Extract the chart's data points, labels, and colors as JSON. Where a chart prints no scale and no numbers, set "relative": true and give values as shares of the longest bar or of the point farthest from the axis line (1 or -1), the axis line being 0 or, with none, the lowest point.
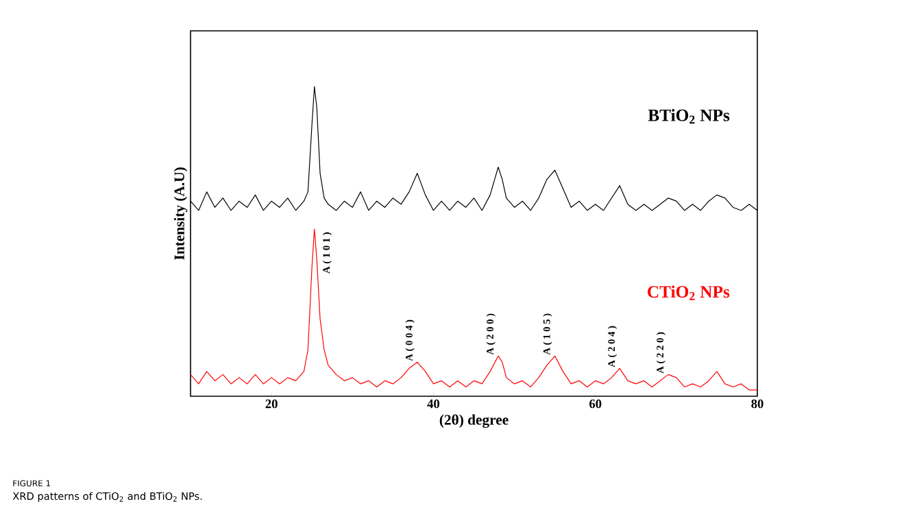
{
  "chart_data": {
    "type": "line",
    "relative": true,
    "xlabel": "(2θ) degree",
    "ylabel": "Intensity (A.U)",
    "x": [
      10,
      11,
      12,
      13,
      14,
      15,
      16,
      17,
      18,
      19,
      20,
      21,
      22,
      23,
      24,
      24.5,
      25,
      25.3,
      25.6,
      26,
      26.5,
      27,
      28,
      29,
      30,
      31,
      32,
      33,
      34,
      35,
      36,
      37,
      38,
      39,
      40,
      41,
      42,
      43,
      44,
      45,
      46,
      47,
      48,
      48.5,
      49,
      50,
      51,
      52,
      53,
      54,
      55,
      56,
      57,
      58,
      59,
      60,
      61,
      62,
      63,
      64,
      65,
      66,
      67,
      68,
      69,
      70,
      71,
      72,
      73,
      74,
      75,
      76,
      77,
      78,
      79,
      80
    ],
    "xlim": [
      10,
      80
    ],
    "xticks": [
      20,
      40,
      60,
      80
    ],
    "grid": false,
    "marker": "none",
    "line_style": "solid",
    "series": [
      {
        "name": "BTiO$_{2}$ NPs",
        "color": "#000000",
        "values": [
          0.63,
          0.6,
          0.66,
          0.61,
          0.64,
          0.6,
          0.63,
          0.61,
          0.65,
          0.6,
          0.63,
          0.61,
          0.64,
          0.6,
          0.63,
          0.66,
          0.88,
          1.0,
          0.93,
          0.72,
          0.64,
          0.62,
          0.6,
          0.63,
          0.61,
          0.66,
          0.6,
          0.63,
          0.61,
          0.64,
          0.62,
          0.66,
          0.72,
          0.65,
          0.6,
          0.63,
          0.6,
          0.63,
          0.61,
          0.64,
          0.6,
          0.65,
          0.74,
          0.7,
          0.64,
          0.61,
          0.63,
          0.6,
          0.64,
          0.7,
          0.73,
          0.67,
          0.61,
          0.63,
          0.6,
          0.62,
          0.6,
          0.64,
          0.68,
          0.62,
          0.6,
          0.62,
          0.6,
          0.62,
          0.64,
          0.63,
          0.6,
          0.62,
          0.6,
          0.63,
          0.65,
          0.64,
          0.61,
          0.6,
          0.62,
          0.6
        ]
      },
      {
        "name": "CTiO$_{2}$ NPs",
        "color": "#ff0000",
        "values": [
          0.07,
          0.04,
          0.08,
          0.05,
          0.07,
          0.04,
          0.06,
          0.04,
          0.07,
          0.04,
          0.06,
          0.04,
          0.06,
          0.05,
          0.08,
          0.15,
          0.42,
          0.54,
          0.44,
          0.25,
          0.15,
          0.1,
          0.07,
          0.05,
          0.06,
          0.04,
          0.05,
          0.03,
          0.05,
          0.04,
          0.06,
          0.09,
          0.11,
          0.08,
          0.04,
          0.05,
          0.03,
          0.05,
          0.03,
          0.05,
          0.04,
          0.08,
          0.13,
          0.11,
          0.06,
          0.04,
          0.05,
          0.03,
          0.06,
          0.1,
          0.13,
          0.08,
          0.04,
          0.05,
          0.03,
          0.05,
          0.04,
          0.06,
          0.09,
          0.05,
          0.04,
          0.05,
          0.03,
          0.05,
          0.07,
          0.06,
          0.03,
          0.04,
          0.03,
          0.05,
          0.08,
          0.04,
          0.03,
          0.04,
          0.02,
          0.02
        ]
      }
    ],
    "annotations": [
      {
        "text": "A ( 1 0 1 )",
        "x": 25.3,
        "y": 0.54
      },
      {
        "text": "A ( 0 0 4 )",
        "x": 38,
        "y": 0.11
      },
      {
        "text": "A ( 2 0 0 )",
        "x": 48,
        "y": 0.13
      },
      {
        "text": "A ( 1 0 5 )",
        "x": 55,
        "y": 0.13
      },
      {
        "text": "A ( 2 0 4 )",
        "x": 63,
        "y": 0.09
      },
      {
        "text": "A ( 2 2 0 )",
        "x": 69,
        "y": 0.07
      },
      "FIGURE 1",
      "XRD patterns of CTiO$_{2}$ and BTiO$_{2}$ NPs."
    ]
  }
}
